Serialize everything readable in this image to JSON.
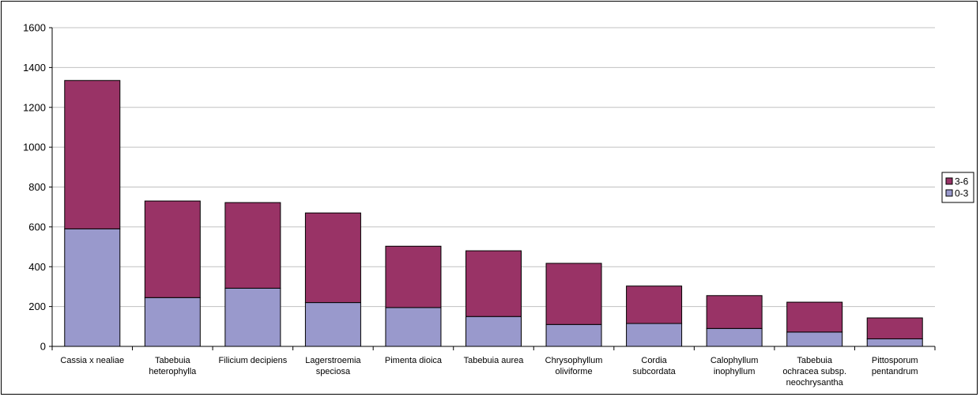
{
  "chart_data": {
    "type": "bar",
    "stacked": true,
    "title": "",
    "xlabel": "",
    "ylabel": "",
    "ylim": [
      0,
      1600
    ],
    "yticks": [
      0,
      200,
      400,
      600,
      800,
      1000,
      1200,
      1400,
      1600
    ],
    "grid": "horizontal",
    "legend_position": "right",
    "categories": [
      "Cassia x nealiae",
      "Tabebuia heterophylla",
      "Filicium decipiens",
      "Lagerstroemia speciosa",
      "Pimenta dioica",
      "Tabebuia aurea",
      "Chrysophyllum oliviforme",
      "Cordia subcordata",
      "Calophyllum inophyllum",
      "Tabebuia ochracea subsp. neochrysantha",
      "Pittosporum pentandrum"
    ],
    "category_lines": [
      [
        "Cassia x nealiae"
      ],
      [
        "Tabebuia",
        "heterophylla"
      ],
      [
        "Filicium decipiens"
      ],
      [
        "Lagerstroemia",
        "speciosa"
      ],
      [
        "Pimenta dioica"
      ],
      [
        "Tabebuia aurea"
      ],
      [
        "Chrysophyllum",
        "oliviforme"
      ],
      [
        "Cordia",
        "subcordata"
      ],
      [
        "Calophyllum",
        "inophyllum"
      ],
      [
        "Tabebuia",
        "ochracea subsp.",
        "neochrysantha"
      ],
      [
        "Pittosporum",
        "pentandrum"
      ]
    ],
    "series": [
      {
        "name": "0-3",
        "color": "#9999cc",
        "values": [
          590,
          245,
          292,
          220,
          195,
          150,
          110,
          115,
          90,
          72,
          38
        ]
      },
      {
        "name": "3-6",
        "color": "#993366",
        "values": [
          745,
          485,
          430,
          450,
          308,
          330,
          307,
          188,
          165,
          150,
          105
        ]
      }
    ],
    "legend_order": [
      "3-6",
      "0-3"
    ]
  }
}
